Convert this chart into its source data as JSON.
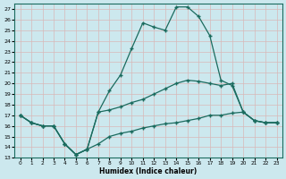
{
  "xlabel": "Humidex (Indice chaleur)",
  "bg_color": "#cce8ee",
  "grid_color": "#b8d8df",
  "line_color": "#1a6b5e",
  "xlim": [
    -0.5,
    23.5
  ],
  "ylim": [
    13,
    27.5
  ],
  "xticks": [
    0,
    1,
    2,
    3,
    4,
    5,
    6,
    7,
    8,
    9,
    10,
    11,
    12,
    13,
    14,
    15,
    16,
    17,
    18,
    19,
    20,
    21,
    22,
    23
  ],
  "yticks": [
    13,
    14,
    15,
    16,
    17,
    18,
    19,
    20,
    21,
    22,
    23,
    24,
    25,
    26,
    27
  ],
  "curve_upper_x": [
    0,
    1,
    2,
    3,
    4,
    5,
    6,
    7,
    8,
    9,
    10,
    11,
    12,
    13,
    14,
    15,
    16,
    17,
    18,
    19,
    20,
    21,
    22,
    23
  ],
  "curve_upper_y": [
    17.0,
    16.3,
    16.0,
    16.0,
    14.3,
    13.3,
    13.8,
    17.3,
    19.3,
    20.8,
    23.3,
    25.7,
    25.3,
    25.0,
    27.2,
    27.2,
    26.3,
    24.5,
    20.3,
    19.8,
    17.3,
    16.5,
    16.3,
    16.3
  ],
  "curve_mid_x": [
    0,
    1,
    2,
    3,
    4,
    5,
    6,
    7,
    8,
    9,
    10,
    11,
    12,
    13,
    14,
    15,
    16,
    17,
    18,
    19,
    20,
    21,
    22,
    23
  ],
  "curve_mid_y": [
    17.0,
    16.3,
    16.0,
    16.0,
    14.3,
    13.3,
    13.8,
    17.3,
    17.5,
    17.8,
    18.2,
    18.5,
    19.0,
    19.5,
    20.0,
    20.3,
    20.2,
    20.0,
    19.8,
    20.0,
    17.3,
    16.5,
    16.3,
    16.3
  ],
  "curve_lower_x": [
    0,
    1,
    2,
    3,
    4,
    5,
    6,
    7,
    8,
    9,
    10,
    11,
    12,
    13,
    14,
    15,
    16,
    17,
    18,
    19,
    20,
    21,
    22,
    23
  ],
  "curve_lower_y": [
    17.0,
    16.3,
    16.0,
    16.0,
    14.3,
    13.3,
    13.8,
    14.3,
    15.0,
    15.3,
    15.5,
    15.8,
    16.0,
    16.2,
    16.3,
    16.5,
    16.7,
    17.0,
    17.0,
    17.2,
    17.3,
    16.5,
    16.3,
    16.3
  ]
}
